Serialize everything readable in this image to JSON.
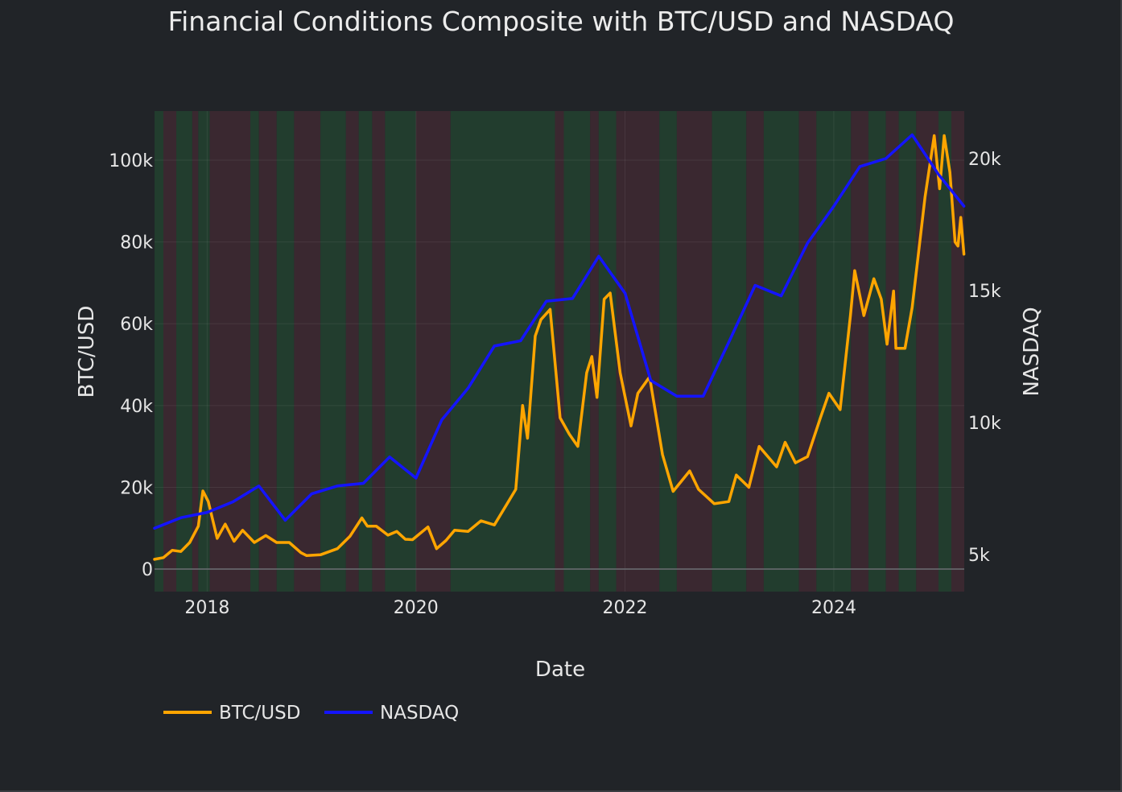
{
  "chart_data": {
    "type": "line",
    "title": "Financial Conditions Composite with BTC/USD and NASDAQ",
    "xlabel": "Date",
    "ylabel": "BTC/USD",
    "y2label": "NASDAQ",
    "xlim": [
      "2017-07-01",
      "2025-04-01"
    ],
    "ylim": [
      -5500,
      112000
    ],
    "y2lim": [
      3600,
      21800
    ],
    "x_ticks": [
      "2018",
      "2020",
      "2022",
      "2024"
    ],
    "y_ticks": [
      {
        "value": 0,
        "label": "0"
      },
      {
        "value": 20000,
        "label": "20k"
      },
      {
        "value": 40000,
        "label": "40k"
      },
      {
        "value": 60000,
        "label": "60k"
      },
      {
        "value": 80000,
        "label": "80k"
      },
      {
        "value": 100000,
        "label": "100k"
      }
    ],
    "y2_ticks": [
      {
        "value": 5000,
        "label": "5k"
      },
      {
        "value": 10000,
        "label": "10k"
      },
      {
        "value": 15000,
        "label": "15k"
      },
      {
        "value": 20000,
        "label": "20k"
      }
    ],
    "grid": true,
    "legend_position": "bottom-left",
    "background_regimes": {
      "colors": {
        "easing": "#223d2e",
        "tightening": "#3a2830"
      },
      "periods": [
        {
          "start": "2017-07-01",
          "end": "2017-08-01",
          "regime": "easing"
        },
        {
          "start": "2017-08-01",
          "end": "2017-09-15",
          "regime": "tightening"
        },
        {
          "start": "2017-09-15",
          "end": "2017-11-10",
          "regime": "easing"
        },
        {
          "start": "2017-11-10",
          "end": "2017-12-01",
          "regime": "tightening"
        },
        {
          "start": "2017-12-01",
          "end": "2018-01-10",
          "regime": "easing"
        },
        {
          "start": "2018-01-10",
          "end": "2018-06-01",
          "regime": "tightening"
        },
        {
          "start": "2018-06-01",
          "end": "2018-07-01",
          "regime": "easing"
        },
        {
          "start": "2018-07-01",
          "end": "2018-09-01",
          "regime": "tightening"
        },
        {
          "start": "2018-09-01",
          "end": "2018-11-01",
          "regime": "easing"
        },
        {
          "start": "2018-11-01",
          "end": "2019-02-01",
          "regime": "tightening"
        },
        {
          "start": "2019-02-01",
          "end": "2019-05-01",
          "regime": "easing"
        },
        {
          "start": "2019-05-01",
          "end": "2019-06-15",
          "regime": "tightening"
        },
        {
          "start": "2019-06-15",
          "end": "2019-08-01",
          "regime": "easing"
        },
        {
          "start": "2019-08-01",
          "end": "2019-09-15",
          "regime": "tightening"
        },
        {
          "start": "2019-09-15",
          "end": "2020-01-01",
          "regime": "easing"
        },
        {
          "start": "2020-01-01",
          "end": "2020-05-01",
          "regime": "tightening"
        },
        {
          "start": "2020-05-01",
          "end": "2021-05-01",
          "regime": "easing"
        },
        {
          "start": "2021-05-01",
          "end": "2021-06-01",
          "regime": "tightening"
        },
        {
          "start": "2021-06-01",
          "end": "2021-09-01",
          "regime": "easing"
        },
        {
          "start": "2021-09-01",
          "end": "2021-10-01",
          "regime": "tightening"
        },
        {
          "start": "2021-10-01",
          "end": "2021-12-01",
          "regime": "easing"
        },
        {
          "start": "2021-12-01",
          "end": "2022-05-01",
          "regime": "tightening"
        },
        {
          "start": "2022-05-01",
          "end": "2022-07-01",
          "regime": "easing"
        },
        {
          "start": "2022-07-01",
          "end": "2022-11-01",
          "regime": "tightening"
        },
        {
          "start": "2022-11-01",
          "end": "2023-03-01",
          "regime": "easing"
        },
        {
          "start": "2023-03-01",
          "end": "2023-05-01",
          "regime": "tightening"
        },
        {
          "start": "2023-05-01",
          "end": "2023-09-01",
          "regime": "easing"
        },
        {
          "start": "2023-09-01",
          "end": "2023-11-01",
          "regime": "tightening"
        },
        {
          "start": "2023-11-01",
          "end": "2024-03-01",
          "regime": "easing"
        },
        {
          "start": "2024-03-01",
          "end": "2024-05-01",
          "regime": "tightening"
        },
        {
          "start": "2024-05-01",
          "end": "2024-07-01",
          "regime": "easing"
        },
        {
          "start": "2024-07-01",
          "end": "2024-08-15",
          "regime": "tightening"
        },
        {
          "start": "2024-08-15",
          "end": "2024-10-15",
          "regime": "easing"
        },
        {
          "start": "2024-10-15",
          "end": "2025-01-01",
          "regime": "tightening"
        },
        {
          "start": "2025-01-01",
          "end": "2025-02-15",
          "regime": "easing"
        },
        {
          "start": "2025-02-15",
          "end": "2025-04-01",
          "regime": "tightening"
        }
      ]
    },
    "series": [
      {
        "name": "BTC/USD",
        "axis": "y",
        "color": "#ffa500",
        "points": [
          [
            "2017-07-01",
            2400
          ],
          [
            "2017-08-01",
            2800
          ],
          [
            "2017-09-01",
            4600
          ],
          [
            "2017-10-01",
            4300
          ],
          [
            "2017-11-01",
            6500
          ],
          [
            "2017-12-01",
            10500
          ],
          [
            "2017-12-17",
            19100
          ],
          [
            "2018-01-05",
            16500
          ],
          [
            "2018-02-05",
            7500
          ],
          [
            "2018-03-05",
            11000
          ],
          [
            "2018-04-05",
            6800
          ],
          [
            "2018-05-05",
            9500
          ],
          [
            "2018-06-15",
            6500
          ],
          [
            "2018-07-25",
            8200
          ],
          [
            "2018-09-01",
            6500
          ],
          [
            "2018-10-15",
            6500
          ],
          [
            "2018-11-25",
            4000
          ],
          [
            "2018-12-15",
            3300
          ],
          [
            "2019-02-01",
            3500
          ],
          [
            "2019-04-01",
            5000
          ],
          [
            "2019-05-15",
            8000
          ],
          [
            "2019-06-26",
            12500
          ],
          [
            "2019-07-15",
            10500
          ],
          [
            "2019-08-15",
            10500
          ],
          [
            "2019-09-25",
            8300
          ],
          [
            "2019-10-26",
            9200
          ],
          [
            "2019-11-25",
            7300
          ],
          [
            "2019-12-20",
            7200
          ],
          [
            "2020-02-12",
            10300
          ],
          [
            "2020-03-13",
            5000
          ],
          [
            "2020-04-15",
            7000
          ],
          [
            "2020-05-15",
            9500
          ],
          [
            "2020-07-01",
            9200
          ],
          [
            "2020-08-15",
            11800
          ],
          [
            "2020-10-01",
            10800
          ],
          [
            "2020-11-15",
            16000
          ],
          [
            "2020-12-15",
            19500
          ],
          [
            "2021-01-08",
            40000
          ],
          [
            "2021-01-25",
            32000
          ],
          [
            "2021-02-21",
            57000
          ],
          [
            "2021-03-13",
            61000
          ],
          [
            "2021-04-14",
            63500
          ],
          [
            "2021-05-19",
            37000
          ],
          [
            "2021-06-20",
            33000
          ],
          [
            "2021-07-20",
            30000
          ],
          [
            "2021-08-20",
            48000
          ],
          [
            "2021-09-07",
            52000
          ],
          [
            "2021-09-25",
            42000
          ],
          [
            "2021-10-20",
            66000
          ],
          [
            "2021-11-10",
            67500
          ],
          [
            "2021-12-15",
            48000
          ],
          [
            "2022-01-22",
            35000
          ],
          [
            "2022-02-15",
            43000
          ],
          [
            "2022-03-28",
            47000
          ],
          [
            "2022-05-12",
            28000
          ],
          [
            "2022-06-18",
            19000
          ],
          [
            "2022-08-15",
            24000
          ],
          [
            "2022-09-15",
            19500
          ],
          [
            "2022-11-09",
            16000
          ],
          [
            "2022-12-30",
            16500
          ],
          [
            "2023-01-25",
            23000
          ],
          [
            "2023-03-10",
            20000
          ],
          [
            "2023-04-15",
            30000
          ],
          [
            "2023-06-15",
            25000
          ],
          [
            "2023-07-15",
            31000
          ],
          [
            "2023-08-20",
            26000
          ],
          [
            "2023-10-01",
            27500
          ],
          [
            "2023-11-15",
            37000
          ],
          [
            "2023-12-15",
            43000
          ],
          [
            "2024-01-23",
            39000
          ],
          [
            "2024-02-28",
            62000
          ],
          [
            "2024-03-14",
            73000
          ],
          [
            "2024-04-15",
            62000
          ],
          [
            "2024-05-20",
            71000
          ],
          [
            "2024-06-15",
            66000
          ],
          [
            "2024-07-05",
            55000
          ],
          [
            "2024-07-28",
            68000
          ],
          [
            "2024-08-05",
            54000
          ],
          [
            "2024-09-06",
            54000
          ],
          [
            "2024-10-01",
            64000
          ],
          [
            "2024-11-15",
            91000
          ],
          [
            "2024-12-17",
            106000
          ],
          [
            "2025-01-05",
            93000
          ],
          [
            "2025-01-21",
            106000
          ],
          [
            "2025-02-10",
            97000
          ],
          [
            "2025-02-28",
            80000
          ],
          [
            "2025-03-10",
            79000
          ],
          [
            "2025-03-20",
            86000
          ],
          [
            "2025-03-31",
            77000
          ]
        ]
      },
      {
        "name": "NASDAQ",
        "axis": "y2",
        "color": "#1414ff",
        "points": [
          [
            "2017-07-01",
            6000
          ],
          [
            "2017-10-01",
            6400
          ],
          [
            "2018-01-01",
            6600
          ],
          [
            "2018-04-01",
            7000
          ],
          [
            "2018-07-01",
            7600
          ],
          [
            "2018-10-01",
            6300
          ],
          [
            "2019-01-01",
            7300
          ],
          [
            "2019-04-01",
            7600
          ],
          [
            "2019-07-01",
            7700
          ],
          [
            "2019-10-01",
            8700
          ],
          [
            "2020-01-01",
            7900
          ],
          [
            "2020-03-31",
            10100
          ],
          [
            "2020-07-01",
            11300
          ],
          [
            "2020-10-01",
            12900
          ],
          [
            "2021-01-01",
            13100
          ],
          [
            "2021-04-01",
            14600
          ],
          [
            "2021-07-01",
            14700
          ],
          [
            "2021-10-01",
            16300
          ],
          [
            "2022-01-01",
            14900
          ],
          [
            "2022-04-01",
            11600
          ],
          [
            "2022-07-01",
            11000
          ],
          [
            "2022-10-01",
            11000
          ],
          [
            "2023-01-01",
            13100
          ],
          [
            "2023-04-01",
            15200
          ],
          [
            "2023-07-01",
            14800
          ],
          [
            "2023-10-01",
            16800
          ],
          [
            "2024-01-01",
            18200
          ],
          [
            "2024-04-01",
            19700
          ],
          [
            "2024-07-01",
            20000
          ],
          [
            "2024-10-01",
            20900
          ],
          [
            "2025-01-01",
            19400
          ],
          [
            "2025-03-31",
            18200
          ]
        ]
      }
    ]
  }
}
